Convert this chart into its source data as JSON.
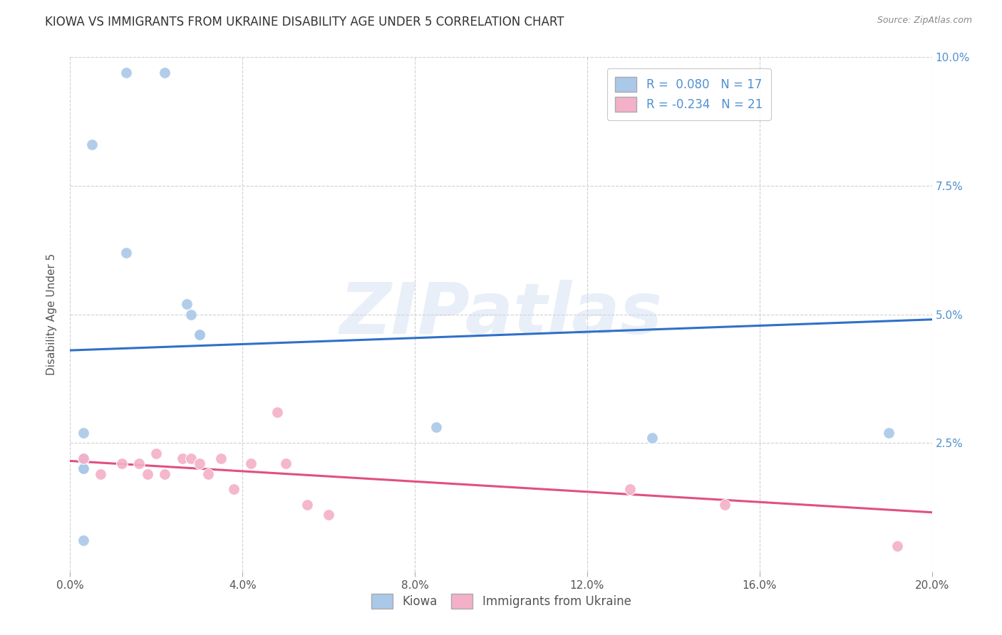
{
  "title": "KIOWA VS IMMIGRANTS FROM UKRAINE DISABILITY AGE UNDER 5 CORRELATION CHART",
  "source": "Source: ZipAtlas.com",
  "ylabel": "Disability Age Under 5",
  "xlim": [
    0.0,
    0.2
  ],
  "ylim": [
    0.0,
    0.1
  ],
  "xticks": [
    0.0,
    0.04,
    0.08,
    0.12,
    0.16,
    0.2
  ],
  "xticklabels": [
    "0.0%",
    "4.0%",
    "8.0%",
    "12.0%",
    "16.0%",
    "20.0%"
  ],
  "yticks": [
    0.0,
    0.025,
    0.05,
    0.075,
    0.1
  ],
  "yticklabels_right": [
    "",
    "2.5%",
    "5.0%",
    "7.5%",
    "10.0%"
  ],
  "kiowa_R": 0.08,
  "kiowa_N": 17,
  "ukraine_R": -0.234,
  "ukraine_N": 21,
  "kiowa_color": "#aac8e8",
  "ukraine_color": "#f4b0c8",
  "kiowa_line_color": "#3070c8",
  "ukraine_line_color": "#e05080",
  "kiowa_scatter_x": [
    0.013,
    0.022,
    0.005,
    0.027,
    0.03,
    0.013,
    0.028,
    0.03,
    0.003,
    0.003,
    0.003,
    0.003,
    0.19,
    0.085,
    0.135,
    0.003,
    0.003
  ],
  "kiowa_scatter_y": [
    0.097,
    0.097,
    0.083,
    0.052,
    0.046,
    0.062,
    0.05,
    0.046,
    0.027,
    0.022,
    0.02,
    0.006,
    0.027,
    0.028,
    0.026,
    0.02,
    0.02
  ],
  "ukraine_scatter_x": [
    0.003,
    0.007,
    0.012,
    0.016,
    0.018,
    0.02,
    0.022,
    0.026,
    0.028,
    0.03,
    0.032,
    0.035,
    0.038,
    0.042,
    0.048,
    0.05,
    0.055,
    0.06,
    0.13,
    0.152,
    0.192
  ],
  "ukraine_scatter_y": [
    0.022,
    0.019,
    0.021,
    0.021,
    0.019,
    0.023,
    0.019,
    0.022,
    0.022,
    0.021,
    0.019,
    0.022,
    0.016,
    0.021,
    0.031,
    0.021,
    0.013,
    0.011,
    0.016,
    0.013,
    0.005
  ],
  "kiowa_line_x": [
    0.0,
    0.2
  ],
  "kiowa_line_y": [
    0.043,
    0.049
  ],
  "ukraine_line_x": [
    0.0,
    0.2
  ],
  "ukraine_line_y": [
    0.0215,
    0.0115
  ],
  "watermark_zip": "ZIP",
  "watermark_atlas": "atlas",
  "background_color": "#ffffff",
  "grid_color": "#d0d0d0",
  "title_fontsize": 12,
  "axis_label_fontsize": 11,
  "tick_fontsize": 11,
  "legend_fontsize": 12,
  "right_tick_color": "#5090d0",
  "bottom_legend_labels": [
    "Kiowa",
    "Immigrants from Ukraine"
  ]
}
